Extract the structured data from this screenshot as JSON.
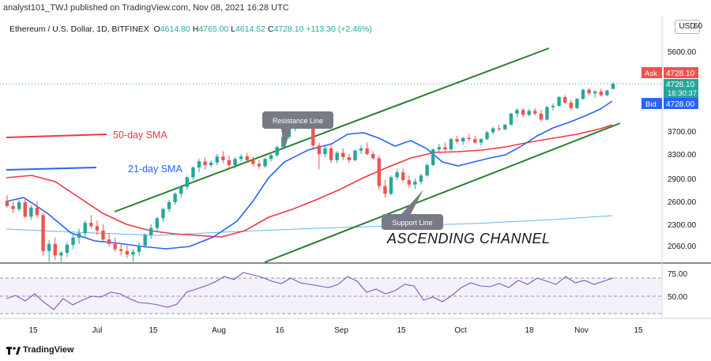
{
  "header": {
    "publish_text": "analyst101_TWJ published on TradingView.com, Nov 08, 2021 16:28 UTC",
    "symbol": "Ethereum / U.S. Dollar, 1D, BITFINEX",
    "ohlc": {
      "o_label": "O",
      "o": "4614.80",
      "h_label": "H",
      "h": "4765.00",
      "l_label": "L",
      "l": "4614.52",
      "c_label": "C",
      "c": "4728.10",
      "change": "+113.30 (+2.46%)"
    },
    "currency": "USD"
  },
  "price_axis": {
    "ticks": [
      "5600.00",
      "3700.00",
      "3300.00",
      "2900.00",
      "2600.00",
      "2300.00",
      "2060.00"
    ],
    "top_partial": "60"
  },
  "markers": {
    "ask_label": "Ask",
    "ask_value": "4728.10",
    "price": "4728.10",
    "countdown": "16:30:37",
    "bid_label": "Bid",
    "bid_value": "4728.00"
  },
  "annotations": {
    "sma50": "50-day SMA",
    "sma21": "21-day SMA",
    "resistance": "Resistance Line",
    "support": "Support Line",
    "channel": "ASCENDING CHANNEL"
  },
  "rsi_axis": {
    "ticks": [
      "75.00",
      "50.00"
    ]
  },
  "time_axis": {
    "ticks": [
      "15",
      "Jul",
      "15",
      "Aug",
      "16",
      "Sep",
      "15",
      "Oct",
      "18",
      "Nov",
      "15"
    ]
  },
  "footer": {
    "brand": "TradingView"
  },
  "colors": {
    "up": "#26a69a",
    "down": "#ef5350",
    "sma21": "#2962ff",
    "sma50": "#f23645",
    "channel": "#2e7d32",
    "rsi": "#7e57c2",
    "long_ma": "#64b5f6"
  },
  "chart_data": {
    "type": "candlestick",
    "series": [
      {
        "name": "50-day SMA"
      },
      {
        "name": "21-day SMA"
      }
    ],
    "x_ticks": [
      "15",
      "Jul",
      "15",
      "Aug",
      "16",
      "Sep",
      "15",
      "Oct",
      "18",
      "Nov",
      "15"
    ],
    "y_ticks": [
      5600,
      3700,
      3300,
      2900,
      2600,
      2300,
      2060
    ],
    "last_close": 4728.1,
    "candles": [
      {
        "o": 2610,
        "h": 2680,
        "l": 2520,
        "c": 2540
      },
      {
        "o": 2540,
        "h": 2600,
        "l": 2450,
        "c": 2500
      },
      {
        "o": 2500,
        "h": 2620,
        "l": 2470,
        "c": 2590
      },
      {
        "o": 2590,
        "h": 2640,
        "l": 2380,
        "c": 2400
      },
      {
        "o": 2400,
        "h": 2550,
        "l": 2360,
        "c": 2520
      },
      {
        "o": 2520,
        "h": 2600,
        "l": 2380,
        "c": 2420
      },
      {
        "o": 2420,
        "h": 2450,
        "l": 1950,
        "c": 2000
      },
      {
        "o": 2000,
        "h": 2120,
        "l": 1880,
        "c": 2080
      },
      {
        "o": 2080,
        "h": 2150,
        "l": 1900,
        "c": 1950
      },
      {
        "o": 1950,
        "h": 2000,
        "l": 1870,
        "c": 1980
      },
      {
        "o": 1980,
        "h": 2100,
        "l": 1930,
        "c": 2070
      },
      {
        "o": 2070,
        "h": 2200,
        "l": 2020,
        "c": 2150
      },
      {
        "o": 2150,
        "h": 2250,
        "l": 2080,
        "c": 2200
      },
      {
        "o": 2200,
        "h": 2350,
        "l": 2150,
        "c": 2320
      },
      {
        "o": 2320,
        "h": 2420,
        "l": 2250,
        "c": 2280
      },
      {
        "o": 2280,
        "h": 2350,
        "l": 2180,
        "c": 2230
      },
      {
        "o": 2230,
        "h": 2300,
        "l": 2100,
        "c": 2130
      },
      {
        "o": 2130,
        "h": 2200,
        "l": 2050,
        "c": 2080
      },
      {
        "o": 2080,
        "h": 2150,
        "l": 1990,
        "c": 2020
      },
      {
        "o": 2020,
        "h": 2080,
        "l": 1950,
        "c": 2000
      },
      {
        "o": 2000,
        "h": 2060,
        "l": 1920,
        "c": 1960
      },
      {
        "o": 1960,
        "h": 2020,
        "l": 1880,
        "c": 1990
      },
      {
        "o": 1990,
        "h": 2100,
        "l": 1950,
        "c": 2060
      },
      {
        "o": 2060,
        "h": 2200,
        "l": 2030,
        "c": 2180
      },
      {
        "o": 2180,
        "h": 2300,
        "l": 2140,
        "c": 2260
      },
      {
        "o": 2260,
        "h": 2400,
        "l": 2220,
        "c": 2380
      },
      {
        "o": 2380,
        "h": 2520,
        "l": 2340,
        "c": 2500
      },
      {
        "o": 2500,
        "h": 2620,
        "l": 2460,
        "c": 2590
      },
      {
        "o": 2590,
        "h": 2720,
        "l": 2560,
        "c": 2700
      },
      {
        "o": 2700,
        "h": 2820,
        "l": 2650,
        "c": 2790
      },
      {
        "o": 2790,
        "h": 2950,
        "l": 2750,
        "c": 2920
      },
      {
        "o": 2920,
        "h": 3100,
        "l": 2880,
        "c": 3080
      },
      {
        "o": 3080,
        "h": 3220,
        "l": 3000,
        "c": 3180
      },
      {
        "o": 3180,
        "h": 3250,
        "l": 3050,
        "c": 3120
      },
      {
        "o": 3120,
        "h": 3200,
        "l": 3080,
        "c": 3160
      },
      {
        "o": 3160,
        "h": 3300,
        "l": 3120,
        "c": 3260
      },
      {
        "o": 3260,
        "h": 3350,
        "l": 3150,
        "c": 3200
      },
      {
        "o": 3200,
        "h": 3280,
        "l": 3080,
        "c": 3120
      },
      {
        "o": 3120,
        "h": 3250,
        "l": 3060,
        "c": 3220
      },
      {
        "o": 3220,
        "h": 3300,
        "l": 3180,
        "c": 3260
      },
      {
        "o": 3260,
        "h": 3320,
        "l": 3180,
        "c": 3200
      },
      {
        "o": 3200,
        "h": 3260,
        "l": 3100,
        "c": 3140
      },
      {
        "o": 3140,
        "h": 3200,
        "l": 3060,
        "c": 3100
      },
      {
        "o": 3100,
        "h": 3240,
        "l": 3080,
        "c": 3220
      },
      {
        "o": 3220,
        "h": 3300,
        "l": 3180,
        "c": 3280
      },
      {
        "o": 3280,
        "h": 3450,
        "l": 3250,
        "c": 3420
      },
      {
        "o": 3420,
        "h": 3650,
        "l": 3380,
        "c": 3600
      },
      {
        "o": 3600,
        "h": 3800,
        "l": 3560,
        "c": 3780
      },
      {
        "o": 3780,
        "h": 3900,
        "l": 3700,
        "c": 3850
      },
      {
        "o": 3850,
        "h": 3960,
        "l": 3780,
        "c": 3920
      },
      {
        "o": 3920,
        "h": 3980,
        "l": 3850,
        "c": 3900
      },
      {
        "o": 3900,
        "h": 3950,
        "l": 3400,
        "c": 3450
      },
      {
        "o": 3450,
        "h": 3500,
        "l": 3050,
        "c": 3300
      },
      {
        "o": 3300,
        "h": 3450,
        "l": 3250,
        "c": 3400
      },
      {
        "o": 3400,
        "h": 3480,
        "l": 3150,
        "c": 3200
      },
      {
        "o": 3200,
        "h": 3350,
        "l": 3150,
        "c": 3320
      },
      {
        "o": 3320,
        "h": 3400,
        "l": 3200,
        "c": 3250
      },
      {
        "o": 3250,
        "h": 3300,
        "l": 3150,
        "c": 3200
      },
      {
        "o": 3200,
        "h": 3380,
        "l": 3180,
        "c": 3360
      },
      {
        "o": 3360,
        "h": 3450,
        "l": 3300,
        "c": 3400
      },
      {
        "o": 3400,
        "h": 3500,
        "l": 3280,
        "c": 3300
      },
      {
        "o": 3300,
        "h": 3350,
        "l": 3200,
        "c": 3230
      },
      {
        "o": 3230,
        "h": 3280,
        "l": 2750,
        "c": 2800
      },
      {
        "o": 2800,
        "h": 2880,
        "l": 2650,
        "c": 2700
      },
      {
        "o": 2700,
        "h": 2950,
        "l": 2680,
        "c": 2920
      },
      {
        "o": 2920,
        "h": 3050,
        "l": 2880,
        "c": 3000
      },
      {
        "o": 3000,
        "h": 3060,
        "l": 2850,
        "c": 2880
      },
      {
        "o": 2880,
        "h": 2950,
        "l": 2780,
        "c": 2820
      },
      {
        "o": 2820,
        "h": 2900,
        "l": 2760,
        "c": 2860
      },
      {
        "o": 2860,
        "h": 2980,
        "l": 2820,
        "c": 2950
      },
      {
        "o": 2950,
        "h": 3150,
        "l": 2930,
        "c": 3120
      },
      {
        "o": 3120,
        "h": 3400,
        "l": 3100,
        "c": 3380
      },
      {
        "o": 3380,
        "h": 3480,
        "l": 3340,
        "c": 3420
      },
      {
        "o": 3420,
        "h": 3500,
        "l": 3350,
        "c": 3380
      },
      {
        "o": 3380,
        "h": 3580,
        "l": 3360,
        "c": 3560
      },
      {
        "o": 3560,
        "h": 3620,
        "l": 3480,
        "c": 3520
      },
      {
        "o": 3520,
        "h": 3600,
        "l": 3460,
        "c": 3580
      },
      {
        "o": 3580,
        "h": 3650,
        "l": 3520,
        "c": 3560
      },
      {
        "o": 3560,
        "h": 3620,
        "l": 3480,
        "c": 3500
      },
      {
        "o": 3500,
        "h": 3580,
        "l": 3450,
        "c": 3560
      },
      {
        "o": 3560,
        "h": 3700,
        "l": 3540,
        "c": 3680
      },
      {
        "o": 3680,
        "h": 3800,
        "l": 3640,
        "c": 3760
      },
      {
        "o": 3760,
        "h": 3840,
        "l": 3700,
        "c": 3740
      },
      {
        "o": 3740,
        "h": 3860,
        "l": 3720,
        "c": 3840
      },
      {
        "o": 3840,
        "h": 4100,
        "l": 3820,
        "c": 4080
      },
      {
        "o": 4080,
        "h": 4200,
        "l": 4000,
        "c": 4160
      },
      {
        "o": 4160,
        "h": 4200,
        "l": 4000,
        "c": 4050
      },
      {
        "o": 4050,
        "h": 4180,
        "l": 4020,
        "c": 4140
      },
      {
        "o": 4140,
        "h": 4200,
        "l": 4040,
        "c": 4080
      },
      {
        "o": 4080,
        "h": 4160,
        "l": 3900,
        "c": 3950
      },
      {
        "o": 3950,
        "h": 4250,
        "l": 3930,
        "c": 4220
      },
      {
        "o": 4220,
        "h": 4300,
        "l": 4150,
        "c": 4250
      },
      {
        "o": 4250,
        "h": 4460,
        "l": 4230,
        "c": 4440
      },
      {
        "o": 4440,
        "h": 4480,
        "l": 4280,
        "c": 4320
      },
      {
        "o": 4320,
        "h": 4380,
        "l": 4150,
        "c": 4200
      },
      {
        "o": 4200,
        "h": 4420,
        "l": 4180,
        "c": 4400
      },
      {
        "o": 4400,
        "h": 4620,
        "l": 4380,
        "c": 4600
      },
      {
        "o": 4600,
        "h": 4640,
        "l": 4480,
        "c": 4520
      },
      {
        "o": 4520,
        "h": 4600,
        "l": 4420,
        "c": 4560
      },
      {
        "o": 4560,
        "h": 4620,
        "l": 4450,
        "c": 4480
      },
      {
        "o": 4480,
        "h": 4600,
        "l": 4460,
        "c": 4580
      },
      {
        "o": 4614.8,
        "h": 4765,
        "l": 4614.52,
        "c": 4728.1
      }
    ]
  }
}
